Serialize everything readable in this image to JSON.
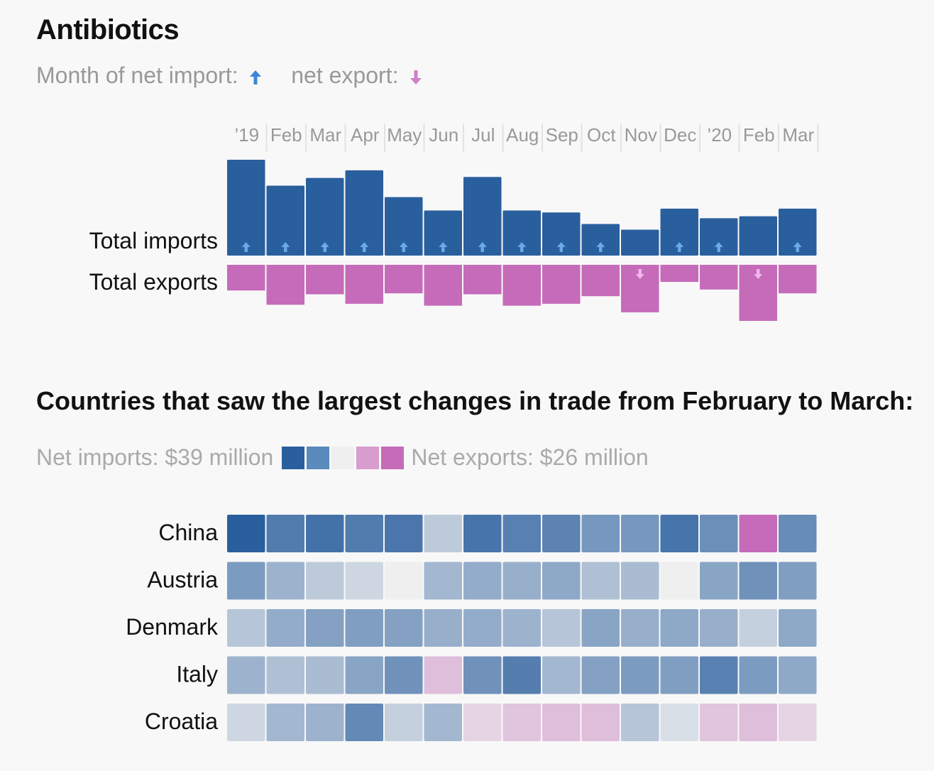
{
  "title": "Antibiotics",
  "legend": {
    "import_label": "Month of net import:",
    "export_label": "net export:",
    "import_icon": "arrow-up-icon",
    "export_icon": "arrow-down-icon"
  },
  "colors": {
    "import": "#2a5f9e",
    "import_arrow": "#6aaae6",
    "export": "#c56bb9",
    "export_arrow": "#f0b6ea",
    "neutral": "#efefef",
    "background": "#f8f8f8"
  },
  "chart_data": [
    {
      "type": "bar",
      "title": "Antibiotics",
      "categories": [
        "’19",
        "Feb",
        "Mar",
        "Apr",
        "May",
        "Jun",
        "Jul",
        "Aug",
        "Sep",
        "Oct",
        "Nov",
        "Dec",
        "’20",
        "Feb",
        "Mar"
      ],
      "series": [
        {
          "name": "Total imports",
          "values": [
            100,
            73,
            81,
            89,
            61,
            47,
            82,
            47,
            45,
            33,
            27,
            49,
            39,
            41,
            49
          ]
        },
        {
          "name": "Total exports",
          "values": [
            27,
            42,
            31,
            41,
            30,
            43,
            31,
            43,
            41,
            33,
            50,
            18,
            26,
            59,
            30
          ]
        }
      ],
      "net_direction": [
        "import",
        "import",
        "import",
        "import",
        "import",
        "import",
        "import",
        "import",
        "import",
        "import",
        "export",
        "import",
        "import",
        "export",
        "import"
      ],
      "row_labels": [
        "Total imports",
        "Total exports"
      ]
    },
    {
      "type": "heatmap",
      "title": "Countries that saw the largest changes in trade from February to March:",
      "columns": [
        "’19",
        "Feb",
        "Mar",
        "Apr",
        "May",
        "Jun",
        "Jul",
        "Aug",
        "Sep",
        "Oct",
        "Nov",
        "Dec",
        "’20",
        "Feb",
        "Mar"
      ],
      "rows": [
        "China",
        "Austria",
        "Denmark",
        "Italy",
        "Croatia"
      ],
      "scale": {
        "min": -26,
        "max": 39,
        "unit": "$ million"
      },
      "values": [
        [
          39,
          27,
          31,
          27,
          29,
          4,
          30,
          25,
          24,
          17,
          17,
          30,
          20,
          -26,
          21
        ],
        [
          16,
          9,
          4,
          2,
          0,
          8,
          11,
          10,
          12,
          6,
          7,
          0,
          13,
          19,
          15
        ],
        [
          5,
          11,
          14,
          15,
          14,
          10,
          11,
          9,
          5,
          13,
          10,
          12,
          10,
          3,
          12
        ],
        [
          9,
          6,
          7,
          13,
          19,
          -5,
          19,
          26,
          8,
          14,
          16,
          15,
          25,
          16,
          12
        ],
        [
          2,
          8,
          9,
          22,
          3,
          8,
          -2,
          -4,
          -5,
          -5,
          5,
          1,
          -4,
          -5,
          -2
        ]
      ]
    }
  ],
  "heatmap_legend": {
    "import_label": "Net imports: $39 million",
    "export_label": "Net exports: $26 million",
    "swatches": [
      "#2a5f9e",
      "#5b8abc",
      "#efefef",
      "#d99ccf",
      "#c56bb9"
    ]
  }
}
